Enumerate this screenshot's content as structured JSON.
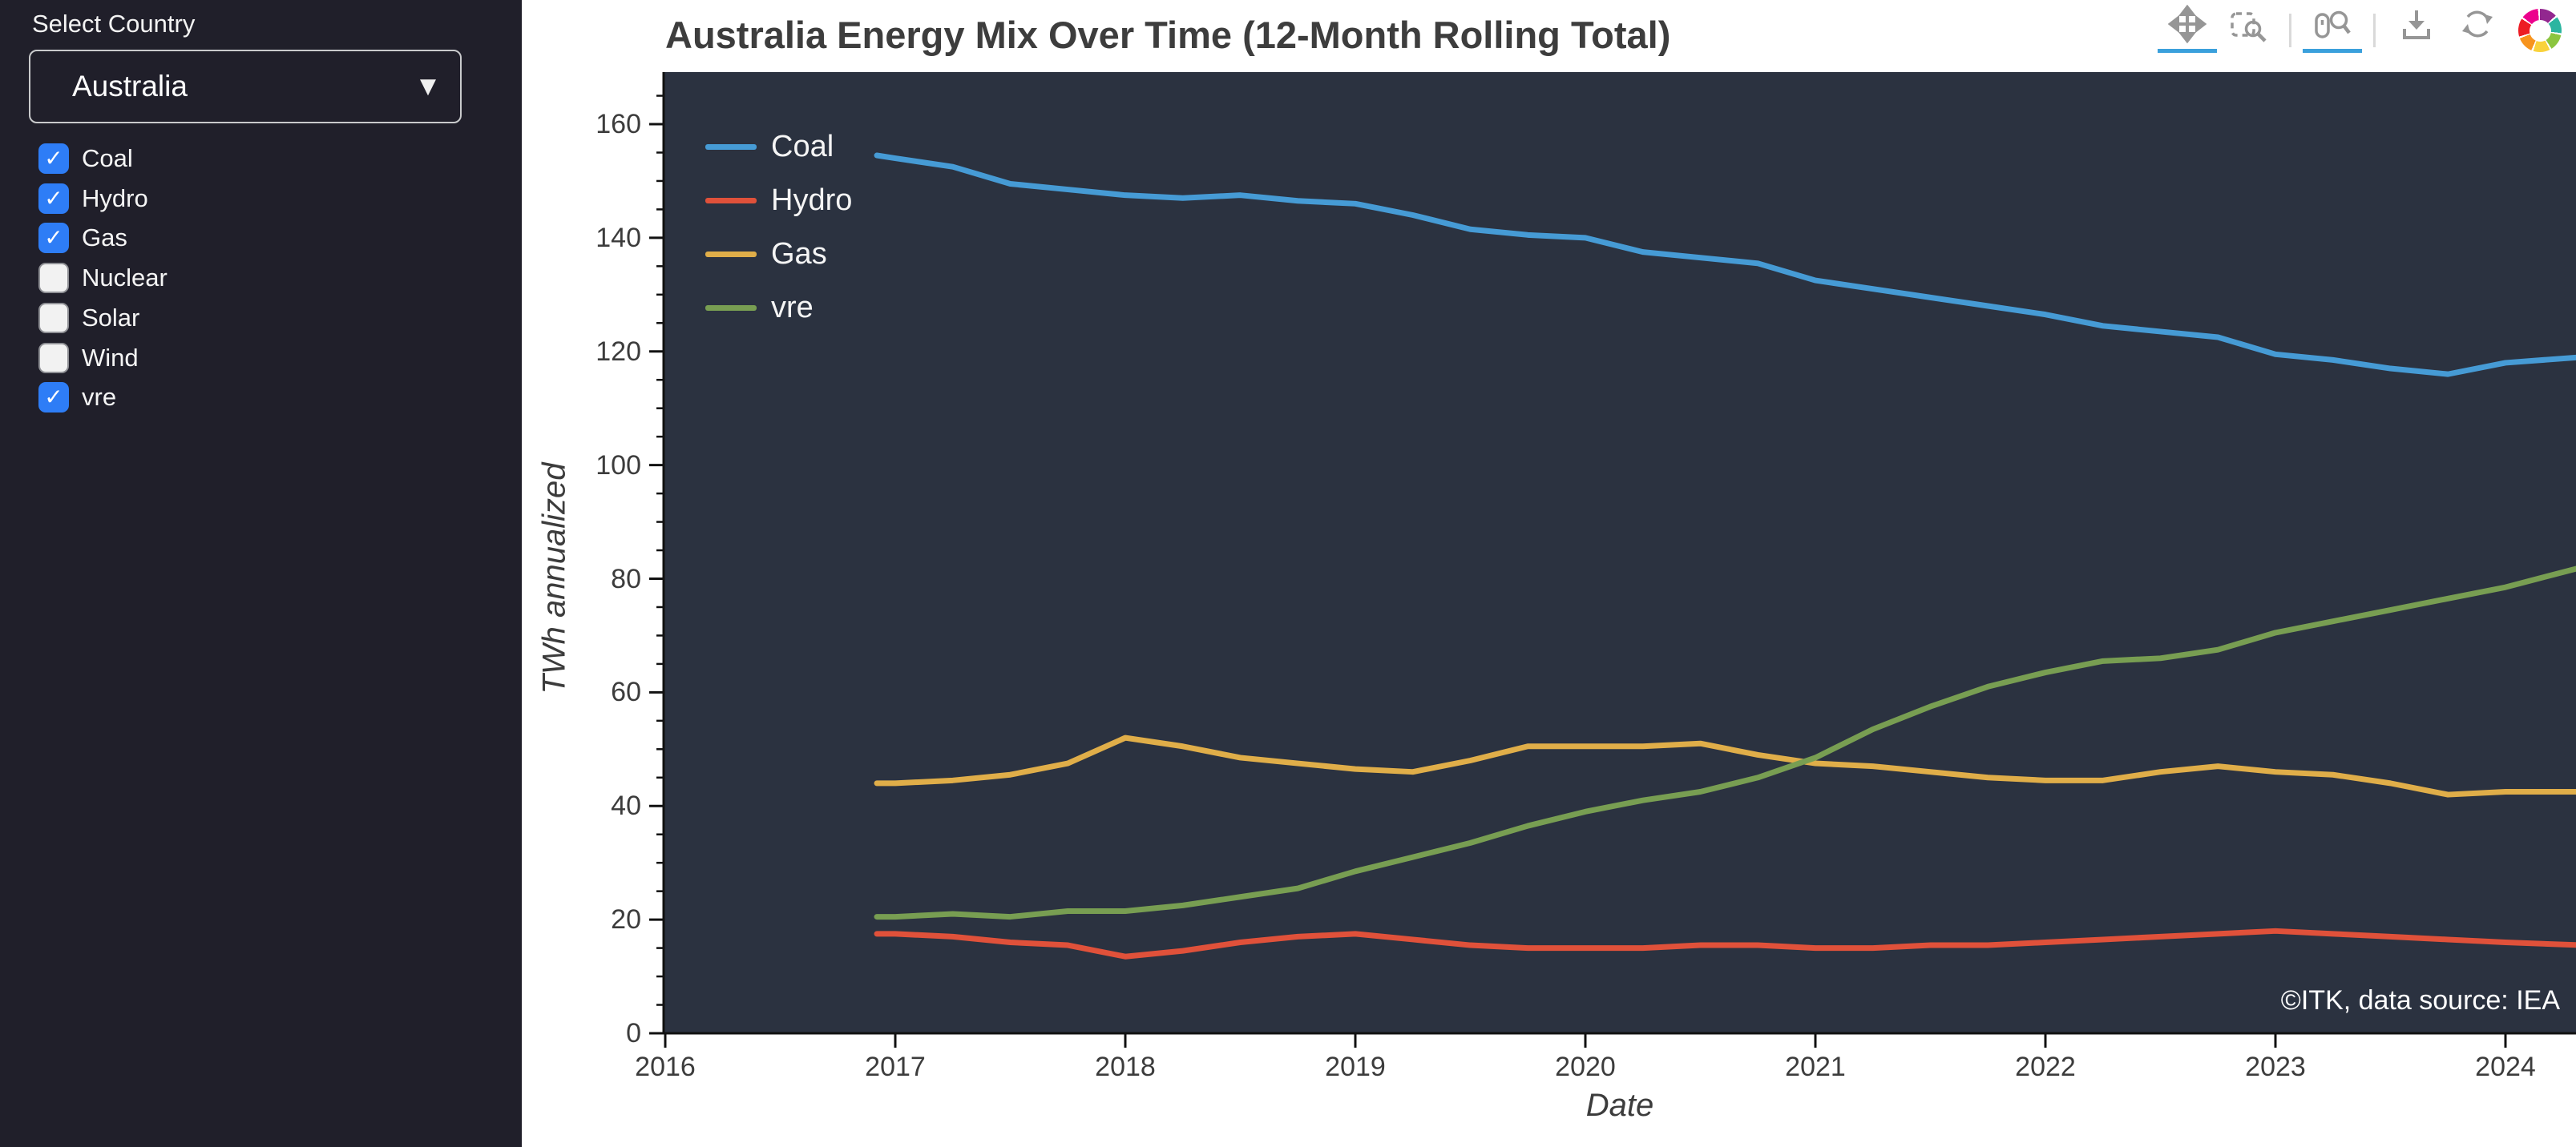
{
  "sidebar": {
    "country_label": "Select Country",
    "country_value": "Australia",
    "checkboxes": [
      {
        "label": "Coal",
        "checked": true
      },
      {
        "label": "Hydro",
        "checked": true
      },
      {
        "label": "Gas",
        "checked": true
      },
      {
        "label": "Nuclear",
        "checked": false
      },
      {
        "label": "Solar",
        "checked": false
      },
      {
        "label": "Wind",
        "checked": false
      },
      {
        "label": "vre",
        "checked": true
      }
    ]
  },
  "header": {
    "title": "Australia Energy Mix Over Time (12-Month Rolling Total)"
  },
  "toolbar": {
    "tools": [
      {
        "name": "pan",
        "icon": "move-arrows-icon",
        "active": true
      },
      {
        "name": "box-zoom",
        "icon": "box-zoom-icon",
        "active": false
      },
      {
        "name": "wheel-zoom",
        "icon": "mouse-magnifier-icon",
        "active": true
      },
      {
        "name": "save",
        "icon": "download-icon",
        "active": false
      },
      {
        "name": "reset",
        "icon": "refresh-icon",
        "active": false
      }
    ],
    "logo": "bokeh-logo"
  },
  "annotation": "©ITK, data source: IEA",
  "colors": {
    "plot_bg": "#2b3240",
    "sidebar_bg": "#201f2a",
    "checkbox_on": "#2e7df6",
    "active_tool_underline": "#3aa0dc",
    "axis_text": "#3c3c3c",
    "coal": "#469bd5",
    "hydro": "#e0513a",
    "gas": "#e0ae49",
    "vre": "#789e52"
  },
  "chart_data": {
    "type": "line",
    "title": "Australia Energy Mix Over Time (12-Month Rolling Total)",
    "xlabel": "Date",
    "ylabel": "TWh annualized",
    "legend_position": "top-left",
    "grid": false,
    "xlim": [
      2015.99,
      2024.31
    ],
    "ylim": [
      0,
      169
    ],
    "x_ticks": [
      2016,
      2017,
      2018,
      2019,
      2020,
      2021,
      2022,
      2023,
      2024
    ],
    "y_ticks": [
      0,
      20,
      40,
      60,
      80,
      100,
      120,
      140,
      160
    ],
    "x": [
      2016.92,
      2017.0,
      2017.25,
      2017.5,
      2017.75,
      2018.0,
      2018.25,
      2018.5,
      2018.75,
      2019.0,
      2019.25,
      2019.5,
      2019.75,
      2020.0,
      2020.25,
      2020.5,
      2020.75,
      2021.0,
      2021.25,
      2021.5,
      2021.75,
      2022.0,
      2022.25,
      2022.5,
      2022.75,
      2023.0,
      2023.25,
      2023.5,
      2023.75,
      2024.0,
      2024.33
    ],
    "series": [
      {
        "name": "Coal",
        "color": "#469bd5",
        "values": [
          154.5,
          154,
          152.5,
          149.5,
          148.5,
          147.5,
          147,
          147.5,
          146.5,
          146,
          144,
          141.5,
          140.5,
          140,
          137.5,
          136.5,
          135.5,
          132.5,
          131,
          129.5,
          128,
          126.5,
          124.5,
          123.5,
          122.5,
          119.5,
          118.5,
          117,
          116,
          118,
          119
        ]
      },
      {
        "name": "Hydro",
        "color": "#e0513a",
        "values": [
          17.5,
          17.5,
          17,
          16,
          15.5,
          13.5,
          14.5,
          16,
          17,
          17.5,
          16.5,
          15.5,
          15,
          15,
          15,
          15.5,
          15.5,
          15,
          15,
          15.5,
          15.5,
          16,
          16.5,
          17,
          17.5,
          18,
          17.5,
          17,
          16.5,
          16,
          15.5
        ]
      },
      {
        "name": "Gas",
        "color": "#e0ae49",
        "values": [
          44,
          44,
          44.5,
          45.5,
          47.5,
          52,
          50.5,
          48.5,
          47.5,
          46.5,
          46,
          48,
          50.5,
          50.5,
          50.5,
          51,
          49,
          47.5,
          47,
          46,
          45,
          44.5,
          44.5,
          46,
          47,
          46,
          45.5,
          44,
          42,
          42.5,
          42.5
        ]
      },
      {
        "name": "vre",
        "color": "#789e52",
        "values": [
          20.5,
          20.5,
          21,
          20.5,
          21.5,
          21.5,
          22.5,
          24,
          25.5,
          28.5,
          31,
          33.5,
          36.5,
          39,
          41,
          42.5,
          45,
          48.5,
          53.5,
          57.5,
          61,
          63.5,
          65.5,
          66,
          67.5,
          70.5,
          72.5,
          74.5,
          76.5,
          78.5,
          82
        ]
      }
    ]
  }
}
